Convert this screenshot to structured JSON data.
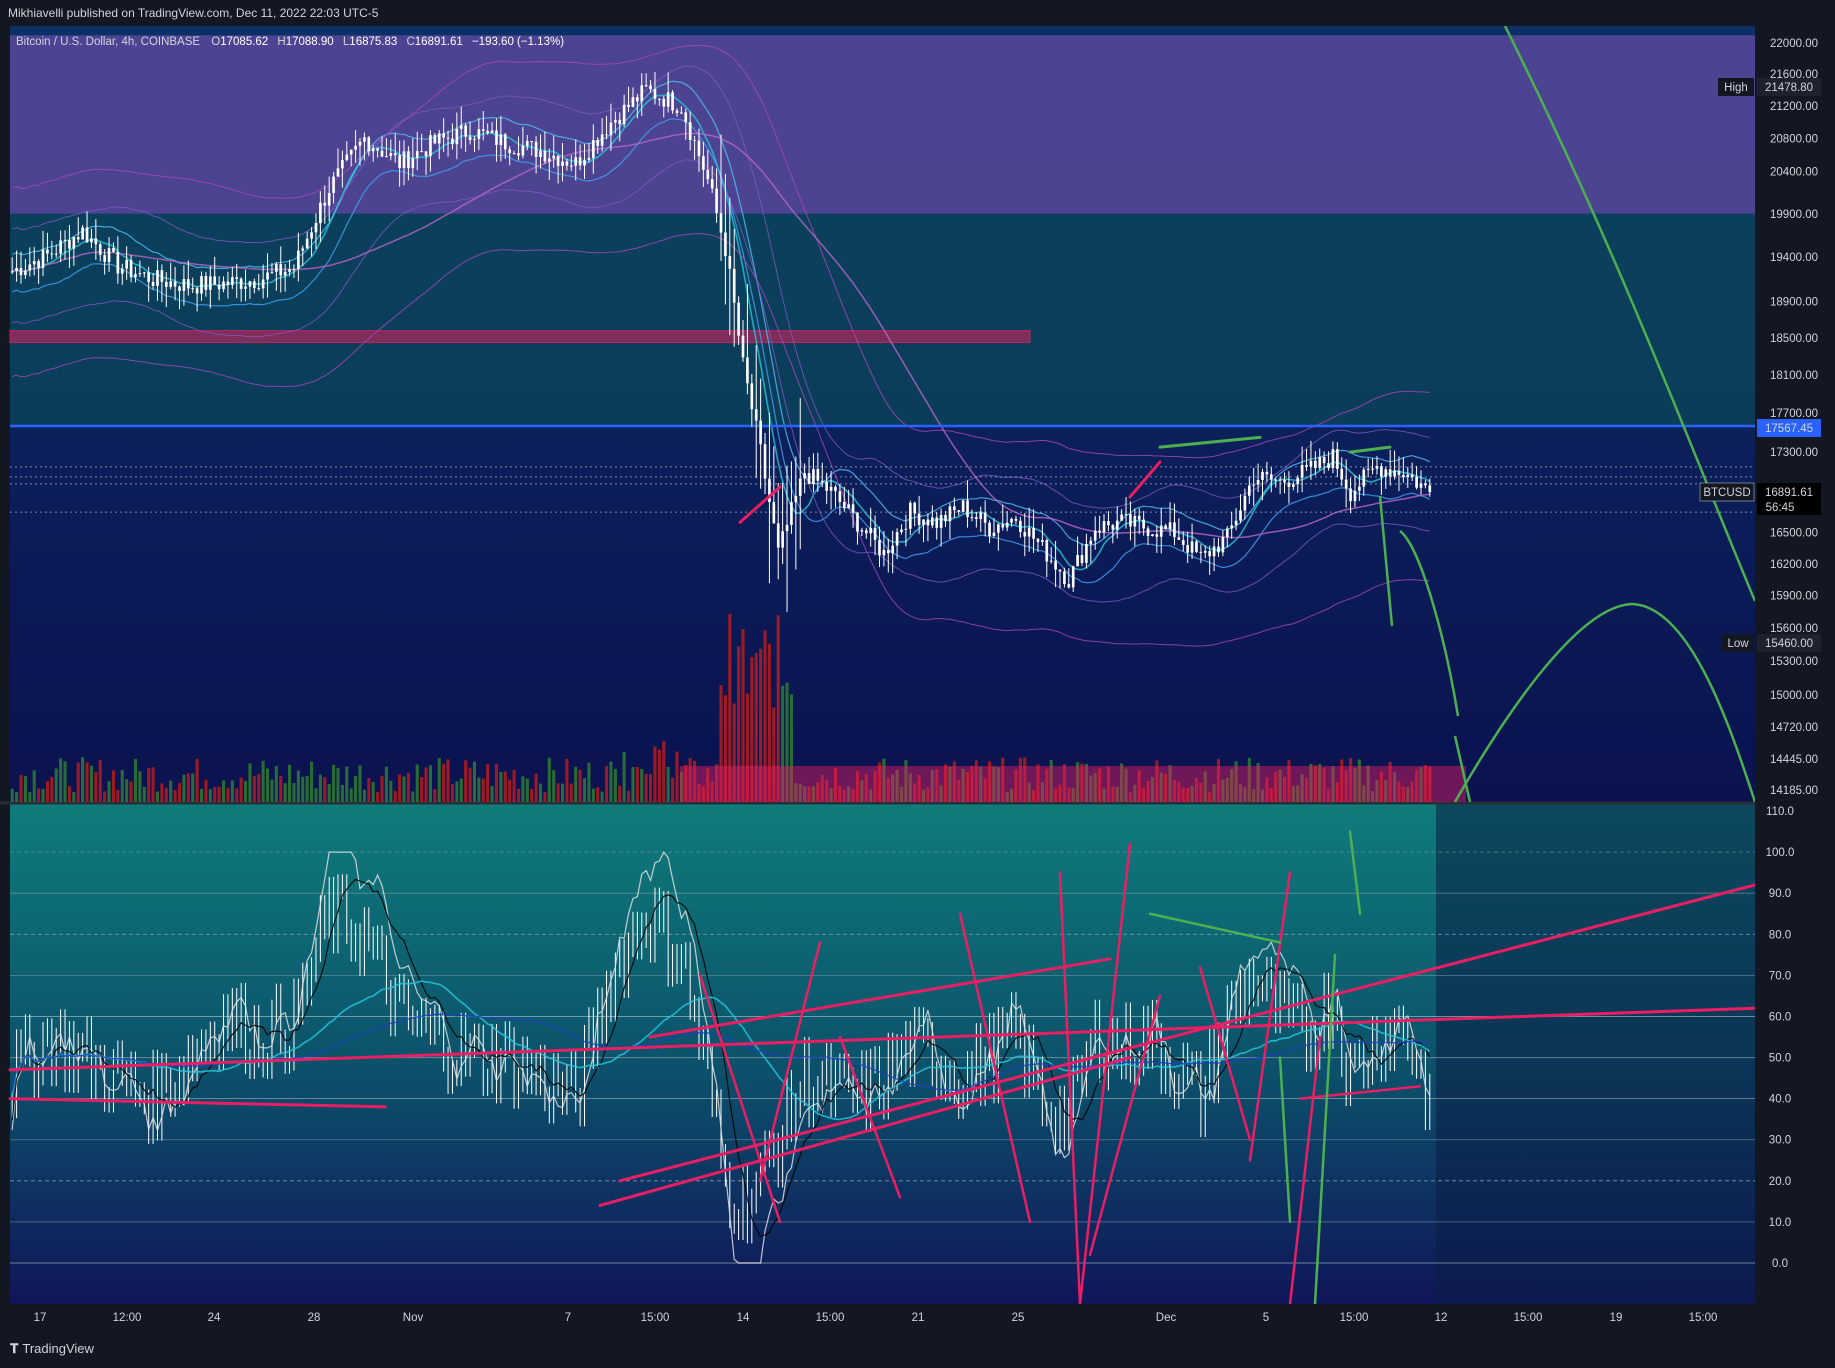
{
  "header": {
    "publisher_text": "Mikhiavelli published on TradingView.com, Dec 11, 2022 22:03 UTC-5"
  },
  "legend": {
    "symbol": "Bitcoin / U.S. Dollar, 4h, COINBASE",
    "open_label": "O",
    "open": "17085.62",
    "high_label": "H",
    "high": "17088.90",
    "low_label": "L",
    "low": "16875.83",
    "close_label": "C",
    "close": "16891.61",
    "change": "−193.60 (−1.13%)"
  },
  "price_badges": {
    "high_label": "High",
    "high_value": "21478.80",
    "low_label": "Low",
    "low_value": "15460.00",
    "line_value": "17567.45",
    "symbol_tag": "BTCUSD",
    "last_value": "16891.61",
    "countdown": "56:45"
  },
  "footer": {
    "brand": "TradingView"
  },
  "colors": {
    "background": "#131722",
    "candle": "#ffffff",
    "up_volume": "#2e7d32",
    "down_volume": "#b71c1c",
    "annotation_pink": "#e91e63",
    "annotation_green": "#4caf50",
    "horizontal_line": "#2962ff",
    "purple_zone": "#5c4a9e",
    "teal_zone": "#0b4a5a"
  },
  "chart_data": [
    {
      "type": "candlestick",
      "title": "Bitcoin / U.S. Dollar, 4h, COINBASE",
      "x_tick_labels": [
        "17",
        "12:00",
        "24",
        "28",
        "Nov",
        "7",
        "15:00",
        "14",
        "15:00",
        "21",
        "25",
        "Dec",
        "5",
        "15:00",
        "12",
        "15:00",
        "19",
        "15:00"
      ],
      "y_tick_labels": [
        "22000.00",
        "21600.00",
        "21200.00",
        "20800.00",
        "20400.00",
        "19900.00",
        "19400.00",
        "18900.00",
        "18500.00",
        "18100.00",
        "17700.00",
        "17300.00",
        "16500.00",
        "16200.00",
        "15900.00",
        "15600.00",
        "15300.00",
        "15000.00",
        "14720.00",
        "14445.00",
        "14185.00"
      ],
      "ylim": [
        14100,
        22100
      ],
      "log_scale": true,
      "close_path": [
        [
          0,
          19240
        ],
        [
          8,
          19420
        ],
        [
          16,
          19700
        ],
        [
          24,
          19300
        ],
        [
          32,
          19150
        ],
        [
          40,
          19080
        ],
        [
          48,
          19100
        ],
        [
          56,
          19150
        ],
        [
          64,
          19280
        ],
        [
          72,
          20200
        ],
        [
          80,
          20800
        ],
        [
          88,
          20500
        ],
        [
          96,
          20750
        ],
        [
          104,
          20900
        ],
        [
          112,
          20750
        ],
        [
          120,
          20650
        ],
        [
          128,
          20500
        ],
        [
          136,
          21000
        ],
        [
          144,
          21400
        ],
        [
          152,
          21200
        ],
        [
          158,
          20300
        ],
        [
          162,
          19500
        ],
        [
          166,
          18200
        ],
        [
          170,
          17300
        ],
        [
          174,
          16300
        ],
        [
          180,
          17100
        ],
        [
          186,
          16900
        ],
        [
          192,
          16600
        ],
        [
          198,
          16300
        ],
        [
          204,
          16700
        ],
        [
          210,
          16600
        ],
        [
          216,
          16750
        ],
        [
          222,
          16550
        ],
        [
          228,
          16650
        ],
        [
          234,
          16350
        ],
        [
          240,
          16050
        ],
        [
          246,
          16550
        ],
        [
          252,
          16600
        ],
        [
          258,
          16550
        ],
        [
          264,
          16500
        ],
        [
          270,
          16250
        ],
        [
          276,
          16450
        ],
        [
          282,
          17050
        ],
        [
          288,
          17000
        ],
        [
          294,
          17100
        ],
        [
          300,
          17250
        ],
        [
          304,
          16900
        ],
        [
          310,
          17150
        ],
        [
          316,
          17100
        ],
        [
          322,
          16900
        ]
      ],
      "horizontal_line": 17567.45,
      "high": 21478.8,
      "low": 15460.0,
      "last": 16891.61,
      "zones": [
        {
          "name": "purple-zone",
          "from": 19900,
          "to": 22100
        },
        {
          "name": "teal-zone",
          "from": 17567.45,
          "to": 19900
        },
        {
          "name": "resistance-box",
          "from": 18450,
          "to": 18580
        }
      ]
    },
    {
      "type": "line",
      "title": "",
      "y_tick_labels": [
        "110.0",
        "100.0",
        "90.0",
        "80.0",
        "70.0",
        "60.0",
        "50.0",
        "40.0",
        "30.0",
        "20.0",
        "10.0",
        "0.0"
      ],
      "ylim": [
        -10,
        110
      ],
      "levels": [
        100,
        90,
        80,
        70,
        60,
        50,
        40,
        30,
        20,
        10,
        0
      ],
      "series_path": [
        [
          0,
          45
        ],
        [
          8,
          55
        ],
        [
          16,
          50
        ],
        [
          24,
          45
        ],
        [
          32,
          40
        ],
        [
          40,
          50
        ],
        [
          48,
          60
        ],
        [
          56,
          55
        ],
        [
          64,
          58
        ],
        [
          72,
          85
        ],
        [
          80,
          80
        ],
        [
          88,
          60
        ],
        [
          96,
          55
        ],
        [
          104,
          50
        ],
        [
          112,
          50
        ],
        [
          120,
          45
        ],
        [
          128,
          40
        ],
        [
          136,
          70
        ],
        [
          144,
          85
        ],
        [
          152,
          75
        ],
        [
          158,
          45
        ],
        [
          162,
          20
        ],
        [
          166,
          15
        ],
        [
          170,
          20
        ],
        [
          174,
          30
        ],
        [
          180,
          45
        ],
        [
          186,
          42
        ],
        [
          192,
          40
        ],
        [
          198,
          45
        ],
        [
          204,
          52
        ],
        [
          210,
          50
        ],
        [
          216,
          45
        ],
        [
          222,
          50
        ],
        [
          228,
          55
        ],
        [
          234,
          40
        ],
        [
          240,
          35
        ],
        [
          246,
          55
        ],
        [
          252,
          52
        ],
        [
          258,
          55
        ],
        [
          264,
          48
        ],
        [
          270,
          40
        ],
        [
          276,
          60
        ],
        [
          282,
          70
        ],
        [
          288,
          60
        ],
        [
          294,
          55
        ],
        [
          300,
          65
        ],
        [
          304,
          45
        ],
        [
          310,
          55
        ],
        [
          316,
          58
        ],
        [
          322,
          40
        ]
      ]
    }
  ]
}
